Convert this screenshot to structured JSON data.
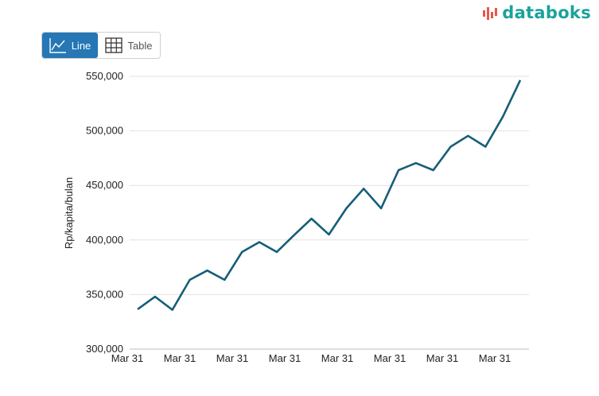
{
  "logo": {
    "text": "databoks",
    "accent": "#e8574a"
  },
  "toggle": {
    "line_label": "Line",
    "table_label": "Table",
    "active": "Line",
    "active_color": "#2577b5"
  },
  "chart_data": {
    "type": "line",
    "title": "",
    "xlabel": "",
    "ylabel": "Rp/kapita/bulan",
    "ylim": [
      300000,
      550000
    ],
    "yticks": [
      300000,
      350000,
      400000,
      450000,
      500000,
      550000
    ],
    "ytick_labels": [
      "300,000",
      "350,000",
      "400,000",
      "450,000",
      "500,000",
      "550,000"
    ],
    "xtick_labels": [
      "Mar 31",
      "Mar 31",
      "Mar 31",
      "Mar 31",
      "Mar 31",
      "Mar 31",
      "Mar 31",
      "Mar 31"
    ],
    "grid": true,
    "line_color": "#165e78",
    "series": [
      {
        "values": [
          336500,
          348000,
          336000,
          363500,
          372000,
          363500,
          389000,
          398000,
          389000,
          404500,
          419500,
          405000,
          429000,
          447000,
          429000,
          464000,
          470500,
          464000,
          485500,
          495500,
          485500,
          513000,
          546500
        ]
      }
    ]
  }
}
